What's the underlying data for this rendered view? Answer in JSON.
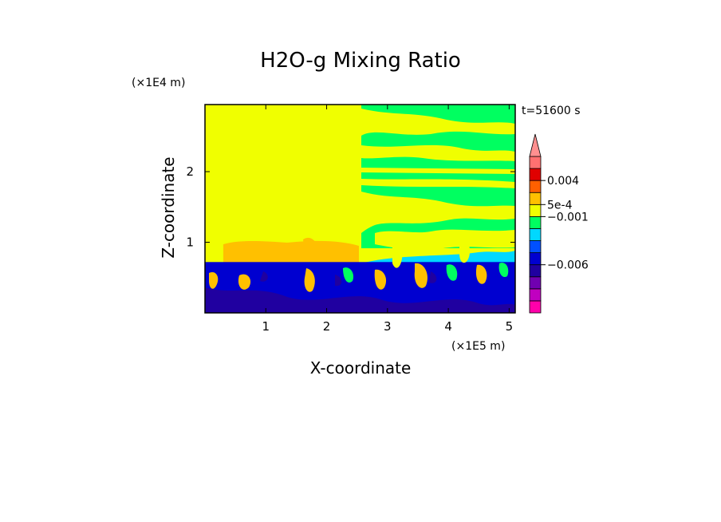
{
  "chart_data": {
    "type": "heatmap",
    "title": "H2O-g Mixing Ratio",
    "xlabel": "X-coordinate",
    "ylabel": "Z-coordinate",
    "x_scale_label": "(×1E5 m)",
    "y_scale_label": "(×1E4 m)",
    "time_label": "t=51600 s",
    "xlim": [
      0.0,
      5.1
    ],
    "ylim": [
      0.0,
      2.95
    ],
    "x_ticks": [
      {
        "value": 1,
        "label": "1"
      },
      {
        "value": 2,
        "label": "2"
      },
      {
        "value": 3,
        "label": "3"
      },
      {
        "value": 4,
        "label": "4"
      },
      {
        "value": 5,
        "label": "5"
      }
    ],
    "y_ticks": [
      {
        "value": 1,
        "label": "1"
      },
      {
        "value": 2,
        "label": "2"
      }
    ],
    "colorbar": {
      "levels": [
        {
          "color": "#ff00aa"
        },
        {
          "color": "#c000c0"
        },
        {
          "color": "#7000b0"
        },
        {
          "color": "#2000a0"
        },
        {
          "color": "#0000d0"
        },
        {
          "color": "#0050ff"
        },
        {
          "color": "#00d8ff"
        },
        {
          "color": "#00ff60"
        },
        {
          "color": "#f0ff00"
        },
        {
          "color": "#ffc000"
        },
        {
          "color": "#ff6000"
        },
        {
          "color": "#e00000"
        },
        {
          "color": "#ff7070"
        }
      ],
      "extend_color": "#ff9090",
      "tick_labels": [
        {
          "label": "0.004",
          "level": 11.0
        },
        {
          "label": "5e-4",
          "level": 9.0
        },
        {
          "label": "−0.001",
          "level": 8.0
        },
        {
          "label": "−0.006",
          "level": 4.0
        }
      ]
    },
    "fields": {
      "domain": "#f0ff00",
      "lower_layer": "#0000d0",
      "lower_layer_top": 0.72,
      "upper_right_background": "#00ff60"
    }
  }
}
